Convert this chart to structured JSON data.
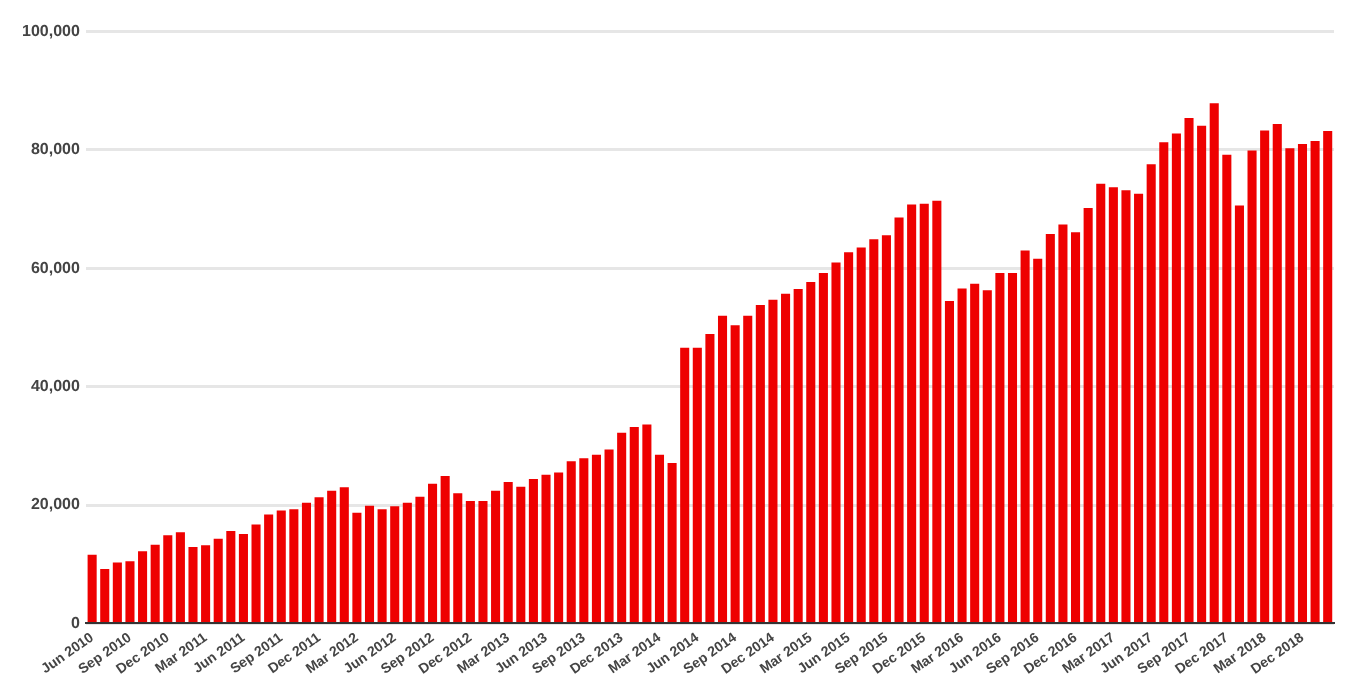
{
  "chart_data": {
    "type": "bar",
    "categories": [
      "Jun 2010",
      null,
      null,
      "Sep 2010",
      null,
      null,
      "Dec 2010",
      null,
      null,
      "Mar 2011",
      null,
      null,
      "Jun 2011",
      null,
      null,
      "Sep 2011",
      null,
      null,
      "Dec 2011",
      null,
      null,
      "Mar 2012",
      null,
      null,
      "Jun 2012",
      null,
      null,
      "Sep 2012",
      null,
      null,
      "Dec 2012",
      null,
      null,
      "Mar 2013",
      null,
      null,
      "Jun 2013",
      null,
      null,
      "Sep 2013",
      null,
      null,
      "Dec 2013",
      null,
      null,
      "Mar 2014",
      null,
      null,
      "Jun 2014",
      null,
      null,
      "Sep 2014",
      null,
      null,
      "Dec 2014",
      null,
      null,
      "Mar 2015",
      null,
      null,
      "Jun 2015",
      null,
      null,
      "Sep 2015",
      null,
      null,
      "Dec 2015",
      null,
      null,
      "Mar 2016",
      null,
      null,
      "Jun 2016",
      null,
      null,
      "Sep 2016",
      null,
      null,
      "Dec 2016",
      null,
      null,
      "Mar 2017",
      null,
      null,
      "Jun 2017",
      null,
      null,
      "Sep 2017",
      null,
      null,
      "Dec 2017",
      null,
      null,
      "Mar 2018",
      null,
      null,
      "Dec 2018",
      null,
      null
    ],
    "values": [
      11600,
      9200,
      10300,
      10500,
      12200,
      13300,
      14900,
      15400,
      12900,
      13200,
      14300,
      15600,
      15100,
      16700,
      18400,
      19100,
      19300,
      20400,
      21300,
      22400,
      23000,
      18700,
      19900,
      19300,
      19800,
      20400,
      21400,
      23600,
      24900,
      22000,
      20700,
      20700,
      22400,
      23900,
      23100,
      24400,
      25100,
      25500,
      27400,
      27900,
      28500,
      29400,
      32200,
      33200,
      33600,
      28500,
      27100,
      46600,
      46600,
      48900,
      52000,
      50400,
      52000,
      53800,
      54700,
      55700,
      56500,
      57700,
      59200,
      61000,
      62700,
      63500,
      64900,
      65600,
      68600,
      70800,
      70900,
      71400,
      54500,
      56600,
      57400,
      56300,
      59200,
      59200,
      63000,
      61600,
      65800,
      67400,
      66100,
      70200,
      74300,
      73700,
      73200,
      72600,
      77600,
      81300,
      82800,
      85400,
      84100,
      87900,
      79200,
      70600,
      79900,
      83300,
      84400,
      80300,
      81000,
      81500,
      83200
    ],
    "color": "#ee0000",
    "ylim": [
      0,
      100000
    ],
    "yticks": [
      {
        "value": 0,
        "label": "0"
      },
      {
        "value": 20000,
        "label": "20,000"
      },
      {
        "value": 40000,
        "label": "40,000"
      },
      {
        "value": 60000,
        "label": "60,000"
      },
      {
        "value": 80000,
        "label": "80,000"
      },
      {
        "value": 100000,
        "label": "100,000"
      }
    ],
    "grid": "y",
    "legend": false
  }
}
